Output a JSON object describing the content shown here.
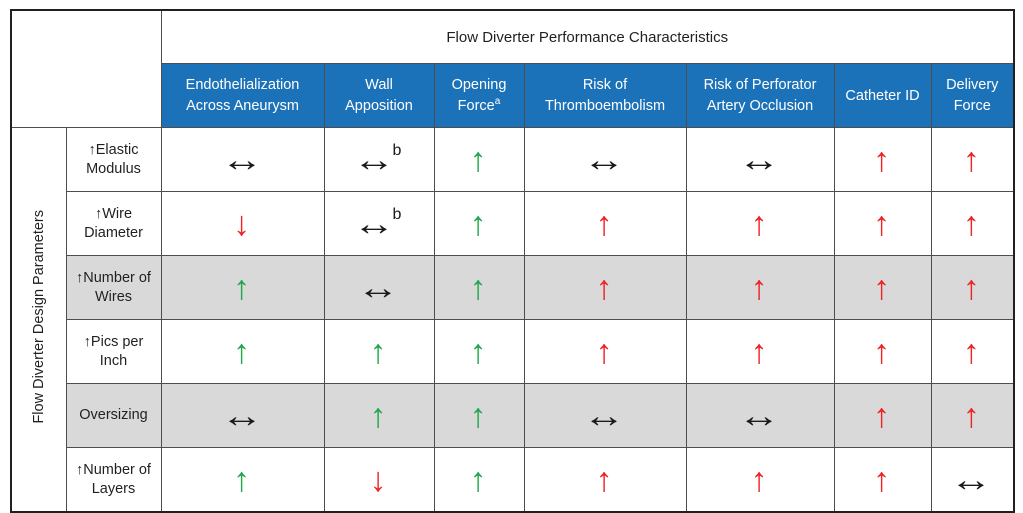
{
  "colors": {
    "header_blue": "#1b72b8",
    "shaded_row": "#d9d9d9",
    "arrow_green": "#1ea94c",
    "arrow_red": "#ec2426",
    "arrow_black": "#1a1a1a"
  },
  "chart_data": {
    "type": "table",
    "title": "Flow Diverter Performance Characteristics",
    "side_label": "Flow Diverter Design Parameters",
    "columns": [
      {
        "label": "Endothelialization Across Aneurysm",
        "sup": ""
      },
      {
        "label": "Wall Apposition",
        "sup": ""
      },
      {
        "label": "Opening Force",
        "sup": "a"
      },
      {
        "label": "Risk of Thromboembolism",
        "sup": ""
      },
      {
        "label": "Risk of Perforator Artery Occlusion",
        "sup": ""
      },
      {
        "label": "Catheter ID",
        "sup": ""
      },
      {
        "label": "Delivery Force",
        "sup": ""
      }
    ],
    "rows": [
      {
        "label": "↑Elastic Modulus",
        "shaded": false,
        "cells": [
          {
            "symbol": "↔",
            "color": "black"
          },
          {
            "symbol": "↔",
            "color": "black",
            "sup": "b"
          },
          {
            "symbol": "↑",
            "color": "green"
          },
          {
            "symbol": "↔",
            "color": "black"
          },
          {
            "symbol": "↔",
            "color": "black"
          },
          {
            "symbol": "↑",
            "color": "red"
          },
          {
            "symbol": "↑",
            "color": "red"
          }
        ]
      },
      {
        "label": "↑Wire Diameter",
        "shaded": false,
        "cells": [
          {
            "symbol": "↓",
            "color": "red"
          },
          {
            "symbol": "↔",
            "color": "black",
            "sup": "b"
          },
          {
            "symbol": "↑",
            "color": "green"
          },
          {
            "symbol": "↑",
            "color": "red"
          },
          {
            "symbol": "↑",
            "color": "red"
          },
          {
            "symbol": "↑",
            "color": "red"
          },
          {
            "symbol": "↑",
            "color": "red"
          }
        ]
      },
      {
        "label": "↑Number of Wires",
        "shaded": true,
        "cells": [
          {
            "symbol": "↑",
            "color": "green"
          },
          {
            "symbol": "↔",
            "color": "black"
          },
          {
            "symbol": "↑",
            "color": "green"
          },
          {
            "symbol": "↑",
            "color": "red"
          },
          {
            "symbol": "↑",
            "color": "red"
          },
          {
            "symbol": "↑",
            "color": "red"
          },
          {
            "symbol": "↑",
            "color": "red"
          }
        ]
      },
      {
        "label": "↑Pics per Inch",
        "shaded": false,
        "cells": [
          {
            "symbol": "↑",
            "color": "green"
          },
          {
            "symbol": "↑",
            "color": "green"
          },
          {
            "symbol": "↑",
            "color": "green"
          },
          {
            "symbol": "↑",
            "color": "red"
          },
          {
            "symbol": "↑",
            "color": "red"
          },
          {
            "symbol": "↑",
            "color": "red"
          },
          {
            "symbol": "↑",
            "color": "red"
          }
        ]
      },
      {
        "label": "Oversizing",
        "shaded": true,
        "cells": [
          {
            "symbol": "↔",
            "color": "black"
          },
          {
            "symbol": "↑",
            "color": "green"
          },
          {
            "symbol": "↑",
            "color": "green"
          },
          {
            "symbol": "↔",
            "color": "black"
          },
          {
            "symbol": "↔",
            "color": "black"
          },
          {
            "symbol": "↑",
            "color": "red"
          },
          {
            "symbol": "↑",
            "color": "red"
          }
        ]
      },
      {
        "label": "↑Number of Layers",
        "shaded": false,
        "cells": [
          {
            "symbol": "↑",
            "color": "green"
          },
          {
            "symbol": "↓",
            "color": "red"
          },
          {
            "symbol": "↑",
            "color": "green"
          },
          {
            "symbol": "↑",
            "color": "red"
          },
          {
            "symbol": "↑",
            "color": "red"
          },
          {
            "symbol": "↑",
            "color": "red"
          },
          {
            "symbol": "↔",
            "color": "black"
          }
        ]
      }
    ]
  }
}
